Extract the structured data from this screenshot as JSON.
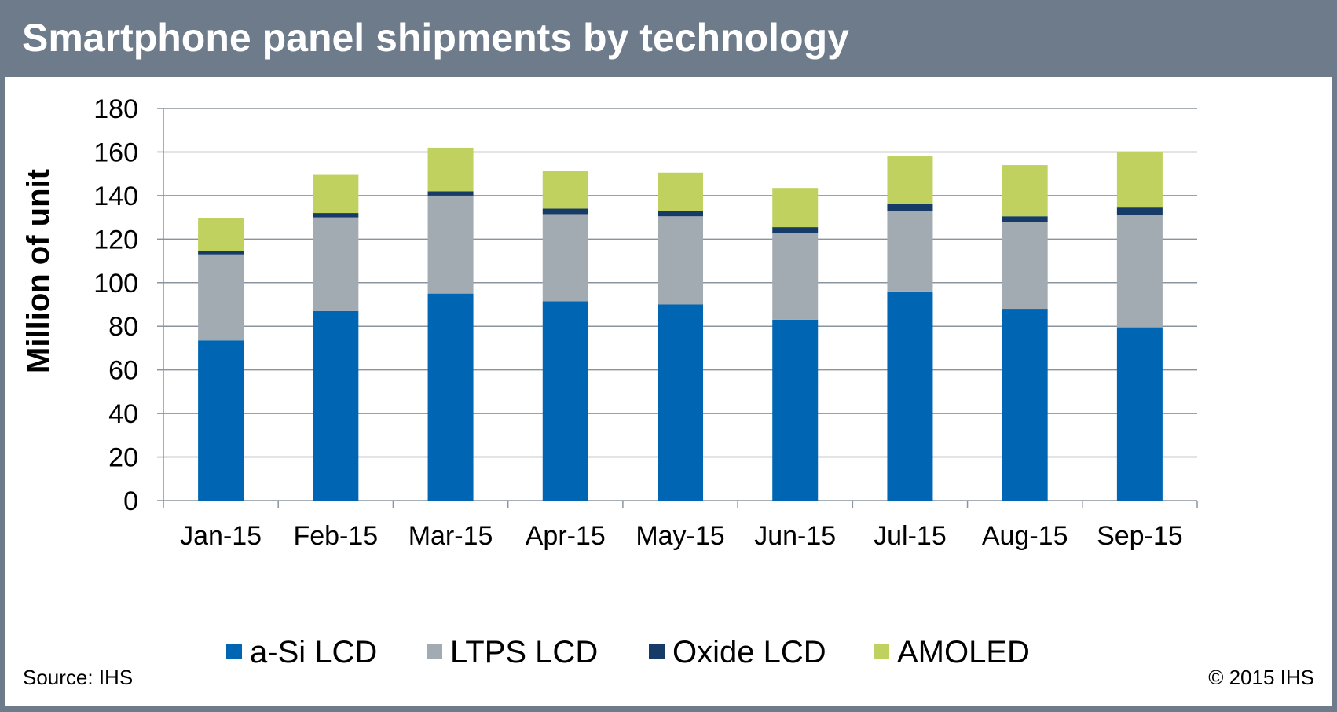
{
  "header": {
    "title": "Smartphone panel shipments by technology"
  },
  "footer": {
    "source": "Source: IHS",
    "copyright": "© 2015 IHS"
  },
  "colors": {
    "frame": "#6e7b8b",
    "a_si_lcd": "#0066b3",
    "ltps_lcd": "#a2aab2",
    "oxide_lcd": "#163b66",
    "amoled": "#c0d15f",
    "gridline": "#8a949e"
  },
  "chart_data": {
    "type": "bar",
    "stacked": true,
    "title": "Smartphone panel shipments by technology",
    "xlabel": "",
    "ylabel": "Million of unit",
    "ylim": [
      0,
      180
    ],
    "yticks": [
      0,
      20,
      40,
      60,
      80,
      100,
      120,
      140,
      160,
      180
    ],
    "grid": true,
    "legend_position": "bottom",
    "categories": [
      "Jan-15",
      "Feb-15",
      "Mar-15",
      "Apr-15",
      "May-15",
      "Jun-15",
      "Jul-15",
      "Aug-15",
      "Sep-15"
    ],
    "series": [
      {
        "name": "a-Si LCD",
        "color": "#0066b3",
        "values": [
          73.5,
          87,
          95,
          91.5,
          90,
          83,
          96,
          88,
          79.5
        ]
      },
      {
        "name": "LTPS LCD",
        "color": "#a2aab2",
        "values": [
          39.5,
          43,
          45,
          40,
          40.5,
          40,
          37,
          40,
          51.5
        ]
      },
      {
        "name": "Oxide LCD",
        "color": "#163b66",
        "values": [
          1.5,
          2,
          2,
          2.5,
          2.5,
          2.5,
          3,
          2.5,
          3.5
        ]
      },
      {
        "name": "AMOLED",
        "color": "#c0d15f",
        "values": [
          15,
          17.5,
          20,
          17.5,
          17.5,
          18,
          22,
          23.5,
          25.5
        ]
      }
    ]
  }
}
